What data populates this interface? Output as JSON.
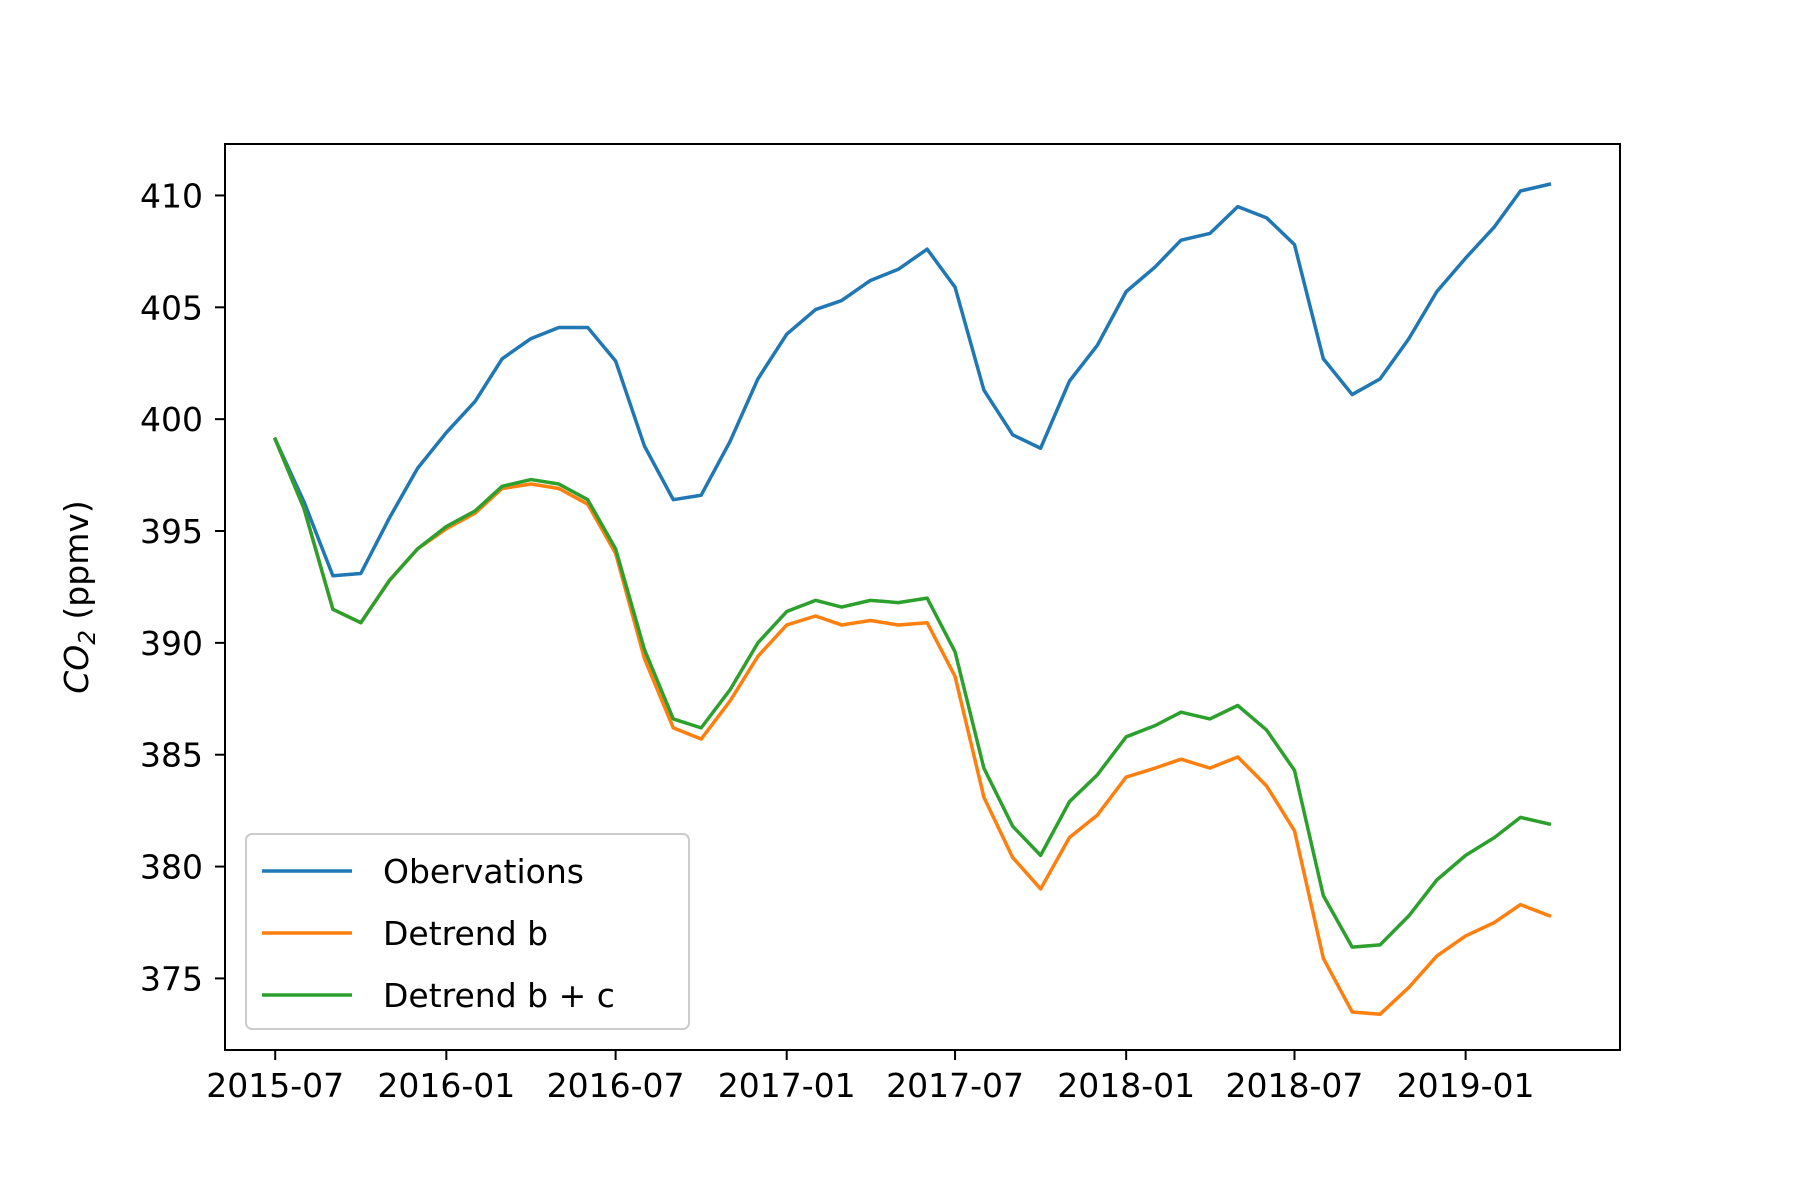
{
  "chart_data": {
    "type": "line",
    "title": "",
    "xlabel": "",
    "ylabel": {
      "base": "CO",
      "sub": "2",
      "unit": " (ppmv)"
    },
    "x": [
      "2015-07",
      "2015-08",
      "2015-09",
      "2015-10",
      "2015-11",
      "2015-12",
      "2016-01",
      "2016-02",
      "2016-03",
      "2016-04",
      "2016-05",
      "2016-06",
      "2016-07",
      "2016-08",
      "2016-09",
      "2016-10",
      "2016-11",
      "2016-12",
      "2017-01",
      "2017-02",
      "2017-03",
      "2017-04",
      "2017-05",
      "2017-06",
      "2017-07",
      "2017-08",
      "2017-09",
      "2017-10",
      "2017-11",
      "2017-12",
      "2018-01",
      "2018-02",
      "2018-03",
      "2018-04",
      "2018-05",
      "2018-06",
      "2018-07",
      "2018-08",
      "2018-09",
      "2018-10",
      "2018-11",
      "2018-12",
      "2019-01",
      "2019-02",
      "2019-03",
      "2019-04"
    ],
    "xticks": [
      "2015-07",
      "2016-01",
      "2016-07",
      "2017-01",
      "2017-07",
      "2018-01",
      "2018-07",
      "2019-01"
    ],
    "yticks": [
      375,
      380,
      385,
      390,
      395,
      400,
      405,
      410
    ],
    "xlim": [
      "2015-05-08",
      "2019-06-16"
    ],
    "ylim": [
      371.8,
      412.3
    ],
    "grid": false,
    "legend_position": "lower-left",
    "series": [
      {
        "name": "Obervations",
        "color": "#1f77b4",
        "values": [
          399.1,
          396.3,
          393.0,
          393.1,
          395.6,
          397.8,
          399.4,
          400.8,
          402.7,
          403.6,
          404.1,
          404.1,
          402.6,
          398.8,
          396.4,
          396.6,
          399.0,
          401.8,
          403.8,
          404.9,
          405.3,
          406.2,
          406.7,
          407.6,
          405.9,
          401.3,
          399.3,
          398.7,
          401.7,
          403.3,
          405.7,
          406.8,
          408.0,
          408.3,
          409.5,
          409.0,
          407.8,
          402.7,
          401.1,
          401.8,
          403.6,
          405.7,
          407.2,
          408.6,
          410.2,
          410.5
        ]
      },
      {
        "name": "Detrend b",
        "color": "#ff7f0e",
        "values": [
          399.1,
          396.0,
          391.5,
          390.9,
          392.8,
          394.2,
          395.1,
          395.8,
          396.9,
          397.1,
          396.9,
          396.2,
          394.0,
          389.3,
          386.2,
          385.7,
          387.4,
          389.4,
          390.8,
          391.2,
          390.8,
          391.0,
          390.8,
          390.9,
          388.5,
          383.1,
          380.4,
          379.0,
          381.3,
          382.3,
          384.0,
          384.4,
          384.8,
          384.4,
          384.9,
          383.6,
          381.6,
          375.9,
          373.5,
          373.4,
          374.6,
          376.0,
          376.9,
          377.5,
          378.3,
          377.8
        ]
      },
      {
        "name": "Detrend b + c",
        "color": "#2ca02c",
        "values": [
          399.1,
          396.0,
          391.5,
          390.9,
          392.8,
          394.2,
          395.2,
          395.9,
          397.0,
          397.3,
          397.1,
          396.4,
          394.2,
          389.7,
          386.6,
          386.2,
          387.9,
          390.0,
          391.4,
          391.9,
          391.6,
          391.9,
          391.8,
          392.0,
          389.6,
          384.4,
          381.8,
          380.5,
          382.9,
          384.1,
          385.8,
          386.3,
          386.9,
          386.6,
          387.2,
          386.1,
          384.3,
          378.7,
          376.4,
          376.5,
          377.8,
          379.4,
          380.5,
          381.3,
          382.2,
          381.9
        ]
      }
    ]
  }
}
